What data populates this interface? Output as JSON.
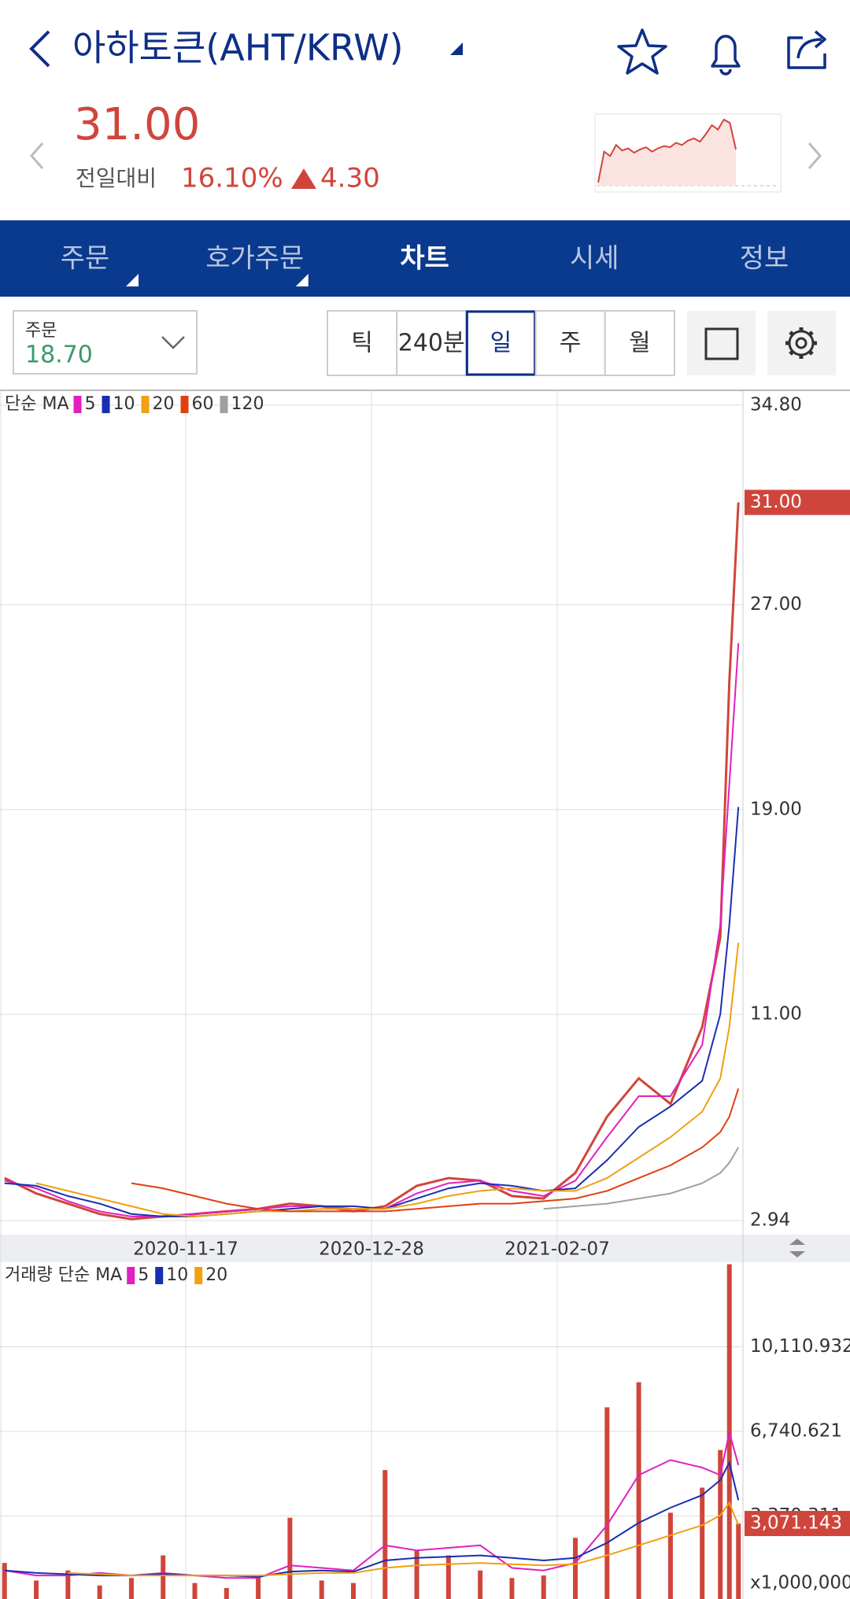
{
  "header": {
    "title": "아하토큰(AHT/KRW)",
    "price": "31.00",
    "change_label": "전일대비",
    "change_pct": "16.10%",
    "change_abs": "4.30",
    "sparkline": {
      "values": [
        3.2,
        6.0,
        5.6,
        6.6,
        6.1,
        6.3,
        5.9,
        6.2,
        6.4,
        6.0,
        6.3,
        6.5,
        6.4,
        6.8,
        6.6,
        7.0,
        7.2,
        6.9,
        7.6,
        8.4,
        8.0,
        8.9,
        8.6,
        6.2
      ]
    }
  },
  "nav": {
    "tabs": [
      "주문",
      "호가주문",
      "차트",
      "시세",
      "정보"
    ],
    "active": 2
  },
  "toolbar": {
    "order_label": "주문",
    "order_value": "18.70",
    "periods": [
      "틱",
      "240분",
      "일",
      "주",
      "월"
    ],
    "selected": 2
  },
  "chart_data": [
    {
      "type": "line",
      "legend_title": "단순 MA",
      "x": [
        "2020-10-08",
        "2020-10-15",
        "2020-10-22",
        "2020-10-29",
        "2020-11-05",
        "2020-11-12",
        "2020-11-19",
        "2020-11-26",
        "2020-12-03",
        "2020-12-10",
        "2020-12-17",
        "2020-12-24",
        "2020-12-31",
        "2021-01-07",
        "2021-01-14",
        "2021-01-21",
        "2021-01-28",
        "2021-02-04",
        "2021-02-11",
        "2021-02-18",
        "2021-02-25",
        "2021-03-04",
        "2021-03-11",
        "2021-03-15",
        "2021-03-17",
        "2021-03-19"
      ],
      "values": [
        4.6,
        4.0,
        3.6,
        3.2,
        3.0,
        3.1,
        3.2,
        3.3,
        3.4,
        3.6,
        3.5,
        3.3,
        3.5,
        4.3,
        4.6,
        4.5,
        3.9,
        3.8,
        4.8,
        7.0,
        8.5,
        7.5,
        10.5,
        14.0,
        24.0,
        31.0
      ],
      "value_labels": [
        null,
        null,
        null,
        null,
        null,
        null,
        null,
        null,
        null,
        null,
        null,
        null,
        null,
        null,
        null,
        null,
        null,
        null,
        null,
        null,
        null,
        null,
        null,
        null,
        null,
        "31.00"
      ],
      "color": "#d0453b",
      "series": [
        {
          "name": "5",
          "color": "#e020c0",
          "values": [
            4.5,
            4.2,
            3.7,
            3.3,
            3.1,
            3.1,
            3.2,
            3.3,
            3.4,
            3.5,
            3.5,
            3.4,
            3.4,
            4.0,
            4.4,
            4.5,
            4.1,
            3.9,
            4.5,
            6.2,
            7.8,
            7.8,
            9.8,
            14.5,
            20.0,
            25.5
          ]
        },
        {
          "name": "10",
          "color": "#1a2fb0",
          "values": [
            4.4,
            4.3,
            3.9,
            3.6,
            3.2,
            3.1,
            3.1,
            3.2,
            3.3,
            3.4,
            3.5,
            3.5,
            3.4,
            3.8,
            4.2,
            4.4,
            4.3,
            4.1,
            4.2,
            5.3,
            6.6,
            7.4,
            8.4,
            11.0,
            14.5,
            19.1
          ]
        },
        {
          "name": "20",
          "color": "#f0a010",
          "values": [
            null,
            4.4,
            4.1,
            3.8,
            3.5,
            3.2,
            3.1,
            3.2,
            3.3,
            3.3,
            3.4,
            3.4,
            3.4,
            3.6,
            3.9,
            4.1,
            4.2,
            4.1,
            4.1,
            4.6,
            5.4,
            6.2,
            7.2,
            8.5,
            10.5,
            13.8
          ]
        },
        {
          "name": "60",
          "color": "#e04010",
          "values": [
            null,
            null,
            null,
            null,
            4.4,
            4.2,
            3.9,
            3.6,
            3.4,
            3.3,
            3.3,
            3.3,
            3.3,
            3.4,
            3.5,
            3.6,
            3.6,
            3.7,
            3.8,
            4.1,
            4.6,
            5.1,
            5.8,
            6.4,
            7.0,
            8.1
          ]
        },
        {
          "name": "120",
          "color": "#a0a0a0",
          "values": [
            null,
            null,
            null,
            null,
            null,
            null,
            null,
            null,
            null,
            null,
            null,
            null,
            null,
            null,
            null,
            null,
            null,
            3.4,
            3.5,
            3.6,
            3.8,
            4.0,
            4.4,
            4.8,
            5.2,
            5.8
          ]
        }
      ],
      "xlim": [
        "2020-10-07",
        "2021-03-20"
      ],
      "xticks": [
        "2020-11-17",
        "2020-12-28",
        "2021-02-07"
      ],
      "ylim": [
        2.39,
        35.35
      ],
      "yticks": [
        {
          "value": 2.94,
          "label": "2.94"
        },
        {
          "value": 11,
          "label": "11.00"
        },
        {
          "value": 19,
          "label": "19.00"
        },
        {
          "value": 27,
          "label": "27.00"
        },
        {
          "value": 34.8,
          "label": "34.80"
        }
      ],
      "grid": true
    },
    {
      "type": "bar",
      "legend_title": "거래량 단순 MA",
      "unit_label": "x1,000,000",
      "x": [
        "2020-10-08",
        "2020-10-15",
        "2020-10-22",
        "2020-10-29",
        "2020-11-05",
        "2020-11-12",
        "2020-11-19",
        "2020-11-26",
        "2020-12-03",
        "2020-12-10",
        "2020-12-17",
        "2020-12-24",
        "2020-12-31",
        "2021-01-07",
        "2021-01-14",
        "2021-01-21",
        "2021-01-28",
        "2021-02-04",
        "2021-02-11",
        "2021-02-18",
        "2021-02-25",
        "2021-03-04",
        "2021-03-11",
        "2021-03-15",
        "2021-03-17",
        "2021-03-19"
      ],
      "values": [
        1500,
        800,
        1200,
        600,
        900,
        1800,
        700,
        500,
        900,
        3300,
        800,
        700,
        5200,
        2000,
        1800,
        1200,
        900,
        1000,
        2500,
        7700,
        8700,
        3500,
        4500,
        6000,
        13400,
        3071.143
      ],
      "value_labels": [
        null,
        null,
        null,
        null,
        null,
        null,
        null,
        null,
        null,
        null,
        null,
        null,
        null,
        null,
        null,
        null,
        null,
        null,
        null,
        null,
        null,
        null,
        null,
        null,
        null,
        "3,071.143"
      ],
      "color": "#d0453b",
      "series": [
        {
          "name": "5",
          "color": "#e020c0",
          "values": [
            1200,
            1000,
            1000,
            1100,
            1000,
            1100,
            1000,
            900,
            900,
            1400,
            1300,
            1200,
            2200,
            2000,
            2100,
            2200,
            1300,
            1200,
            1500,
            3000,
            5000,
            5600,
            5300,
            5000,
            6700,
            5400
          ]
        },
        {
          "name": "10",
          "color": "#1a2fb0",
          "values": [
            1200,
            1100,
            1050,
            1000,
            1000,
            1050,
            1000,
            1000,
            950,
            1150,
            1200,
            1150,
            1600,
            1700,
            1750,
            1800,
            1700,
            1600,
            1700,
            2300,
            3100,
            3700,
            4200,
            4800,
            5500,
            4000
          ]
        },
        {
          "name": "20",
          "color": "#f0a010",
          "values": [
            null,
            null,
            1100,
            1050,
            1000,
            1000,
            1000,
            1000,
            1000,
            1050,
            1100,
            1100,
            1300,
            1400,
            1450,
            1500,
            1450,
            1400,
            1450,
            1800,
            2200,
            2600,
            3000,
            3400,
            3900,
            3000
          ]
        }
      ],
      "xlim": [
        "2020-10-07",
        "2021-03-20"
      ],
      "ylim": [
        0,
        13481.244
      ],
      "yticks": [
        {
          "value": 3370.311,
          "label": "3,370.311"
        },
        {
          "value": 6740.621,
          "label": "6,740.621"
        },
        {
          "value": 10110.932,
          "label": "10,110.932"
        }
      ],
      "grid": true
    }
  ]
}
